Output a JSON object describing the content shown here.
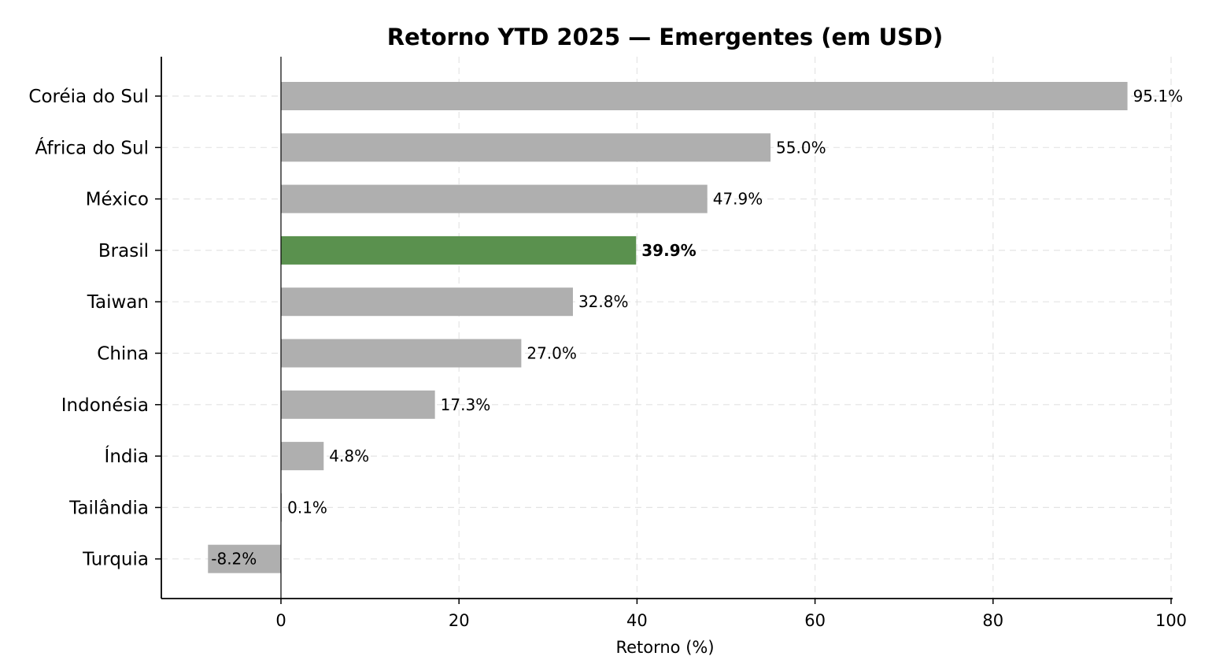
{
  "chart_data": {
    "type": "bar",
    "orientation": "horizontal",
    "title": "Retorno YTD 2025 — Emergentes (em USD)",
    "xlabel": "Retorno (%)",
    "ylabel": "",
    "xlim": [
      -13.5,
      100
    ],
    "xticks": [
      0,
      20,
      40,
      60,
      80,
      100
    ],
    "xtick_labels": [
      "0",
      "20",
      "40",
      "60",
      "80",
      "100"
    ],
    "grid": true,
    "categories": [
      "Coréia do Sul",
      "África do Sul",
      "México",
      "Brasil",
      "Taiwan",
      "China",
      "Indonésia",
      "Índia",
      "Tailândia",
      "Turquia"
    ],
    "values": [
      95.1,
      55.0,
      47.9,
      39.9,
      32.8,
      27.0,
      17.3,
      4.8,
      0.1,
      -8.2
    ],
    "data_labels": [
      "95.1%",
      "55.0%",
      "47.9%",
      "39.9%",
      "32.8%",
      "27.0%",
      "17.3%",
      "4.8%",
      "0.1%",
      "-8.2%"
    ],
    "highlight": "Brasil",
    "colors": {
      "default": "#afafaf",
      "highlight": "#5a914e",
      "axis": "#000000",
      "grid": "#d9d9d9"
    }
  }
}
